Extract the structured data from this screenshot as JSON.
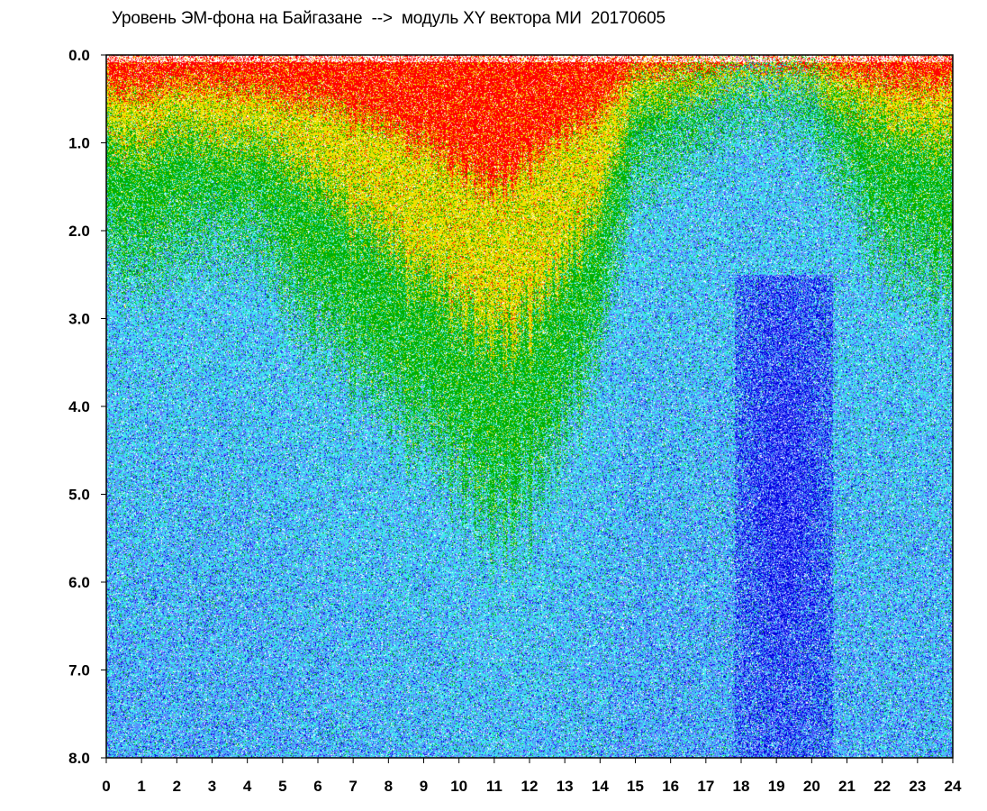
{
  "chart_data": {
    "type": "heatmap",
    "title": "Уровень ЭМ-фона на Байгазане  -->  модуль XY вектора МИ  20170605",
    "xlabel": "",
    "ylabel": "",
    "xlim": [
      0,
      24
    ],
    "ylim": [
      0,
      8
    ],
    "y_inverted": true,
    "x_ticks": [
      "0",
      "1",
      "2",
      "3",
      "4",
      "5",
      "6",
      "7",
      "8",
      "9",
      "10",
      "11",
      "12",
      "13",
      "14",
      "15",
      "16",
      "17",
      "18",
      "19",
      "20",
      "21",
      "22",
      "23",
      "24"
    ],
    "y_ticks": [
      "0.0",
      "1.0",
      "2.0",
      "3.0",
      "4.0",
      "5.0",
      "6.0",
      "7.0",
      "8.0"
    ],
    "grid": false,
    "legend": "none",
    "colormap": [
      "#0000e0",
      "#6070ff",
      "#40e8f0",
      "#00b000",
      "#f0e000",
      "#ff0000"
    ],
    "hour_color_boundaries": [
      {
        "x": 0,
        "red": 0.35,
        "yellow": 0.9,
        "green": 2.2
      },
      {
        "x": 1,
        "red": 0.45,
        "yellow": 1.1,
        "green": 2.4
      },
      {
        "x": 2,
        "red": 0.3,
        "yellow": 0.8,
        "green": 2.1
      },
      {
        "x": 3,
        "red": 0.35,
        "yellow": 1.0,
        "green": 2.0
      },
      {
        "x": 4,
        "red": 0.4,
        "yellow": 1.0,
        "green": 2.1
      },
      {
        "x": 5,
        "red": 0.5,
        "yellow": 1.2,
        "green": 2.6
      },
      {
        "x": 6,
        "red": 0.5,
        "yellow": 1.4,
        "green": 3.0
      },
      {
        "x": 7,
        "red": 0.7,
        "yellow": 1.9,
        "green": 3.6
      },
      {
        "x": 8,
        "red": 0.8,
        "yellow": 2.1,
        "green": 3.9
      },
      {
        "x": 9,
        "red": 1.0,
        "yellow": 2.5,
        "green": 4.2
      },
      {
        "x": 10,
        "red": 1.3,
        "yellow": 2.9,
        "green": 4.8
      },
      {
        "x": 11,
        "red": 1.5,
        "yellow": 3.2,
        "green": 5.3
      },
      {
        "x": 12,
        "red": 1.2,
        "yellow": 3.0,
        "green": 5.0
      },
      {
        "x": 13,
        "red": 0.9,
        "yellow": 2.4,
        "green": 4.2
      },
      {
        "x": 14,
        "red": 0.6,
        "yellow": 1.6,
        "green": 3.0
      },
      {
        "x": 15,
        "red": 0.15,
        "yellow": 0.5,
        "green": 1.3
      },
      {
        "x": 16,
        "red": 0.12,
        "yellow": 0.4,
        "green": 1.1
      },
      {
        "x": 17,
        "red": 0.08,
        "yellow": 0.3,
        "green": 0.8
      },
      {
        "x": 18,
        "red": 0.05,
        "yellow": 0.2,
        "green": 0.5
      },
      {
        "x": 19,
        "red": 0.05,
        "yellow": 0.2,
        "green": 0.5
      },
      {
        "x": 20,
        "red": 0.05,
        "yellow": 0.2,
        "green": 0.6
      },
      {
        "x": 21,
        "red": 0.2,
        "yellow": 0.6,
        "green": 1.5
      },
      {
        "x": 22,
        "red": 0.3,
        "yellow": 0.8,
        "green": 2.2
      },
      {
        "x": 23,
        "red": 0.35,
        "yellow": 0.9,
        "green": 2.4
      },
      {
        "x": 24,
        "red": 0.35,
        "yellow": 1.0,
        "green": 2.6
      }
    ],
    "deep_blue_region": {
      "x": [
        17.8,
        20.6
      ],
      "y": [
        2.5,
        8.0
      ],
      "peak_y": 5.0
    }
  }
}
